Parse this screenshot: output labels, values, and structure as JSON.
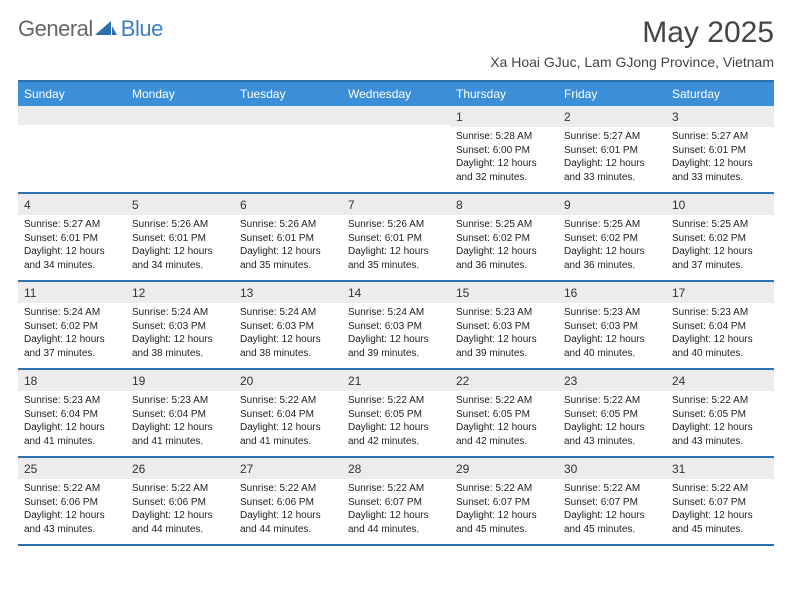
{
  "brand": {
    "part1": "General",
    "part2": "Blue",
    "logo_color": "#2d6faa"
  },
  "title": "May 2025",
  "location": "Xa Hoai GJuc, Lam GJong Province, Vietnam",
  "colors": {
    "header_bg": "#3b8fd8",
    "header_text": "#ffffff",
    "border": "#2d6faa",
    "daynum_bg": "#ececec",
    "text": "#222222"
  },
  "days_of_week": [
    "Sunday",
    "Monday",
    "Tuesday",
    "Wednesday",
    "Thursday",
    "Friday",
    "Saturday"
  ],
  "weeks": [
    [
      {
        "n": "",
        "sr": "",
        "ss": "",
        "dl1": "",
        "dl2": ""
      },
      {
        "n": "",
        "sr": "",
        "ss": "",
        "dl1": "",
        "dl2": ""
      },
      {
        "n": "",
        "sr": "",
        "ss": "",
        "dl1": "",
        "dl2": ""
      },
      {
        "n": "",
        "sr": "",
        "ss": "",
        "dl1": "",
        "dl2": ""
      },
      {
        "n": "1",
        "sr": "Sunrise: 5:28 AM",
        "ss": "Sunset: 6:00 PM",
        "dl1": "Daylight: 12 hours",
        "dl2": "and 32 minutes."
      },
      {
        "n": "2",
        "sr": "Sunrise: 5:27 AM",
        "ss": "Sunset: 6:01 PM",
        "dl1": "Daylight: 12 hours",
        "dl2": "and 33 minutes."
      },
      {
        "n": "3",
        "sr": "Sunrise: 5:27 AM",
        "ss": "Sunset: 6:01 PM",
        "dl1": "Daylight: 12 hours",
        "dl2": "and 33 minutes."
      }
    ],
    [
      {
        "n": "4",
        "sr": "Sunrise: 5:27 AM",
        "ss": "Sunset: 6:01 PM",
        "dl1": "Daylight: 12 hours",
        "dl2": "and 34 minutes."
      },
      {
        "n": "5",
        "sr": "Sunrise: 5:26 AM",
        "ss": "Sunset: 6:01 PM",
        "dl1": "Daylight: 12 hours",
        "dl2": "and 34 minutes."
      },
      {
        "n": "6",
        "sr": "Sunrise: 5:26 AM",
        "ss": "Sunset: 6:01 PM",
        "dl1": "Daylight: 12 hours",
        "dl2": "and 35 minutes."
      },
      {
        "n": "7",
        "sr": "Sunrise: 5:26 AM",
        "ss": "Sunset: 6:01 PM",
        "dl1": "Daylight: 12 hours",
        "dl2": "and 35 minutes."
      },
      {
        "n": "8",
        "sr": "Sunrise: 5:25 AM",
        "ss": "Sunset: 6:02 PM",
        "dl1": "Daylight: 12 hours",
        "dl2": "and 36 minutes."
      },
      {
        "n": "9",
        "sr": "Sunrise: 5:25 AM",
        "ss": "Sunset: 6:02 PM",
        "dl1": "Daylight: 12 hours",
        "dl2": "and 36 minutes."
      },
      {
        "n": "10",
        "sr": "Sunrise: 5:25 AM",
        "ss": "Sunset: 6:02 PM",
        "dl1": "Daylight: 12 hours",
        "dl2": "and 37 minutes."
      }
    ],
    [
      {
        "n": "11",
        "sr": "Sunrise: 5:24 AM",
        "ss": "Sunset: 6:02 PM",
        "dl1": "Daylight: 12 hours",
        "dl2": "and 37 minutes."
      },
      {
        "n": "12",
        "sr": "Sunrise: 5:24 AM",
        "ss": "Sunset: 6:03 PM",
        "dl1": "Daylight: 12 hours",
        "dl2": "and 38 minutes."
      },
      {
        "n": "13",
        "sr": "Sunrise: 5:24 AM",
        "ss": "Sunset: 6:03 PM",
        "dl1": "Daylight: 12 hours",
        "dl2": "and 38 minutes."
      },
      {
        "n": "14",
        "sr": "Sunrise: 5:24 AM",
        "ss": "Sunset: 6:03 PM",
        "dl1": "Daylight: 12 hours",
        "dl2": "and 39 minutes."
      },
      {
        "n": "15",
        "sr": "Sunrise: 5:23 AM",
        "ss": "Sunset: 6:03 PM",
        "dl1": "Daylight: 12 hours",
        "dl2": "and 39 minutes."
      },
      {
        "n": "16",
        "sr": "Sunrise: 5:23 AM",
        "ss": "Sunset: 6:03 PM",
        "dl1": "Daylight: 12 hours",
        "dl2": "and 40 minutes."
      },
      {
        "n": "17",
        "sr": "Sunrise: 5:23 AM",
        "ss": "Sunset: 6:04 PM",
        "dl1": "Daylight: 12 hours",
        "dl2": "and 40 minutes."
      }
    ],
    [
      {
        "n": "18",
        "sr": "Sunrise: 5:23 AM",
        "ss": "Sunset: 6:04 PM",
        "dl1": "Daylight: 12 hours",
        "dl2": "and 41 minutes."
      },
      {
        "n": "19",
        "sr": "Sunrise: 5:23 AM",
        "ss": "Sunset: 6:04 PM",
        "dl1": "Daylight: 12 hours",
        "dl2": "and 41 minutes."
      },
      {
        "n": "20",
        "sr": "Sunrise: 5:22 AM",
        "ss": "Sunset: 6:04 PM",
        "dl1": "Daylight: 12 hours",
        "dl2": "and 41 minutes."
      },
      {
        "n": "21",
        "sr": "Sunrise: 5:22 AM",
        "ss": "Sunset: 6:05 PM",
        "dl1": "Daylight: 12 hours",
        "dl2": "and 42 minutes."
      },
      {
        "n": "22",
        "sr": "Sunrise: 5:22 AM",
        "ss": "Sunset: 6:05 PM",
        "dl1": "Daylight: 12 hours",
        "dl2": "and 42 minutes."
      },
      {
        "n": "23",
        "sr": "Sunrise: 5:22 AM",
        "ss": "Sunset: 6:05 PM",
        "dl1": "Daylight: 12 hours",
        "dl2": "and 43 minutes."
      },
      {
        "n": "24",
        "sr": "Sunrise: 5:22 AM",
        "ss": "Sunset: 6:05 PM",
        "dl1": "Daylight: 12 hours",
        "dl2": "and 43 minutes."
      }
    ],
    [
      {
        "n": "25",
        "sr": "Sunrise: 5:22 AM",
        "ss": "Sunset: 6:06 PM",
        "dl1": "Daylight: 12 hours",
        "dl2": "and 43 minutes."
      },
      {
        "n": "26",
        "sr": "Sunrise: 5:22 AM",
        "ss": "Sunset: 6:06 PM",
        "dl1": "Daylight: 12 hours",
        "dl2": "and 44 minutes."
      },
      {
        "n": "27",
        "sr": "Sunrise: 5:22 AM",
        "ss": "Sunset: 6:06 PM",
        "dl1": "Daylight: 12 hours",
        "dl2": "and 44 minutes."
      },
      {
        "n": "28",
        "sr": "Sunrise: 5:22 AM",
        "ss": "Sunset: 6:07 PM",
        "dl1": "Daylight: 12 hours",
        "dl2": "and 44 minutes."
      },
      {
        "n": "29",
        "sr": "Sunrise: 5:22 AM",
        "ss": "Sunset: 6:07 PM",
        "dl1": "Daylight: 12 hours",
        "dl2": "and 45 minutes."
      },
      {
        "n": "30",
        "sr": "Sunrise: 5:22 AM",
        "ss": "Sunset: 6:07 PM",
        "dl1": "Daylight: 12 hours",
        "dl2": "and 45 minutes."
      },
      {
        "n": "31",
        "sr": "Sunrise: 5:22 AM",
        "ss": "Sunset: 6:07 PM",
        "dl1": "Daylight: 12 hours",
        "dl2": "and 45 minutes."
      }
    ]
  ]
}
